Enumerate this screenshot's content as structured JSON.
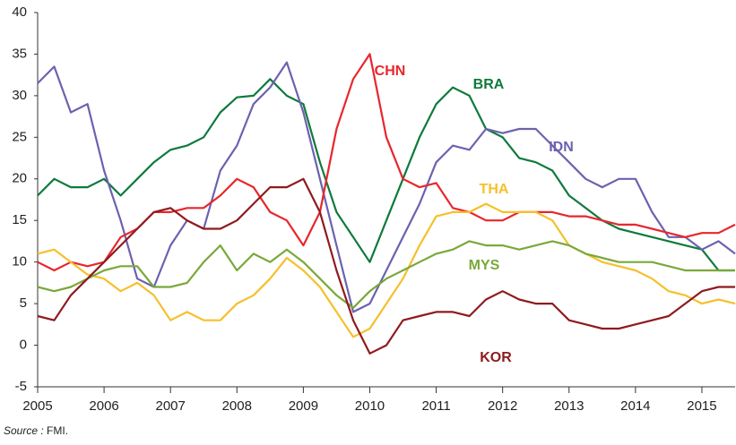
{
  "chart_data": {
    "type": "line",
    "x": [
      2005,
      2005.25,
      2005.5,
      2005.75,
      2006,
      2006.25,
      2006.5,
      2006.75,
      2007,
      2007.25,
      2007.5,
      2007.75,
      2008,
      2008.25,
      2008.5,
      2008.75,
      2009,
      2009.25,
      2009.5,
      2009.75,
      2010,
      2010.25,
      2010.5,
      2010.75,
      2011,
      2011.25,
      2011.5,
      2011.75,
      2012,
      2012.25,
      2012.5,
      2012.75,
      2013,
      2013.25,
      2013.5,
      2013.75,
      2014,
      2014.25,
      2014.5,
      2014.75,
      2015,
      2015.25,
      2015.5
    ],
    "series": [
      {
        "name": "BRA",
        "color": "#0e7a3c",
        "values": [
          18,
          20,
          19,
          19,
          20,
          18,
          20,
          22,
          23.5,
          24,
          25,
          28,
          29.8,
          30,
          32,
          30,
          29,
          22,
          16,
          13,
          10,
          15,
          20,
          25,
          29,
          31,
          30,
          26,
          25,
          22.5,
          22,
          21,
          18,
          16.5,
          15,
          14,
          13.5,
          13,
          12.5,
          12,
          11.5,
          9,
          9
        ]
      },
      {
        "name": "IDN",
        "color": "#6b62b0",
        "values": [
          31.5,
          33.5,
          28,
          29,
          21,
          15,
          8,
          7,
          12,
          15,
          14,
          21,
          24,
          29,
          31,
          34,
          28,
          20,
          12,
          4,
          5,
          9,
          13,
          17,
          22,
          24,
          23.5,
          26,
          25.5,
          26,
          26,
          24,
          22,
          20,
          19,
          20,
          20,
          16,
          13,
          13,
          11.5,
          12.5,
          11
        ]
      },
      {
        "name": "CHN",
        "color": "#e8262d",
        "values": [
          10,
          9,
          10,
          9.5,
          10,
          13,
          14,
          16,
          16,
          16.5,
          16.5,
          18,
          20,
          19,
          16,
          15,
          12,
          16,
          26,
          32,
          35,
          25,
          20,
          19,
          19.5,
          16.5,
          16,
          15,
          15,
          16,
          16,
          16,
          15.5,
          15.5,
          15,
          14.5,
          14.5,
          14,
          13.5,
          13,
          13.5,
          13.5,
          14.5
        ]
      },
      {
        "name": "THA",
        "color": "#f5c02a",
        "values": [
          11,
          11.5,
          10,
          8.5,
          8,
          6.5,
          7.5,
          6,
          3,
          4,
          3,
          3,
          5,
          6,
          8,
          10.5,
          9,
          7,
          4,
          1,
          2,
          5,
          8,
          12,
          15.5,
          16,
          16,
          17,
          16,
          16,
          16,
          15,
          12,
          11,
          10,
          9.5,
          9,
          8,
          6.5,
          6,
          5,
          5.5,
          5
        ]
      },
      {
        "name": "MYS",
        "color": "#7aa83a",
        "values": [
          7,
          6.5,
          7,
          8,
          9,
          9.5,
          9.5,
          7,
          7,
          7.5,
          10,
          12,
          9,
          11,
          10,
          11.5,
          10,
          8,
          6,
          4.5,
          6.5,
          8,
          9,
          10,
          11,
          11.5,
          12.5,
          12,
          12,
          11.5,
          12,
          12.5,
          12,
          11,
          10.5,
          10,
          10,
          10,
          9.5,
          9,
          9,
          9,
          9
        ]
      },
      {
        "name": "KOR",
        "color": "#8e1b1f",
        "values": [
          3.5,
          3,
          6,
          8,
          10,
          12,
          14,
          16,
          16.5,
          15,
          14,
          14,
          15,
          17,
          19,
          19,
          20,
          16,
          9,
          3,
          -1,
          0,
          3,
          3.5,
          4,
          4,
          3.5,
          5.5,
          6.5,
          5.5,
          5,
          5,
          3,
          2.5,
          2,
          2,
          2.5,
          3,
          3.5,
          5,
          6.5,
          7,
          7
        ]
      }
    ],
    "xlim": [
      2005,
      2015.5
    ],
    "xticks": [
      2005,
      2006,
      2007,
      2008,
      2009,
      2010,
      2011,
      2012,
      2013,
      2014,
      2015
    ],
    "ylim": [
      -5,
      40
    ],
    "yticks": [
      -5,
      0,
      5,
      10,
      15,
      20,
      25,
      30,
      35,
      40
    ],
    "source_label": "Source :",
    "source": "FMI."
  }
}
